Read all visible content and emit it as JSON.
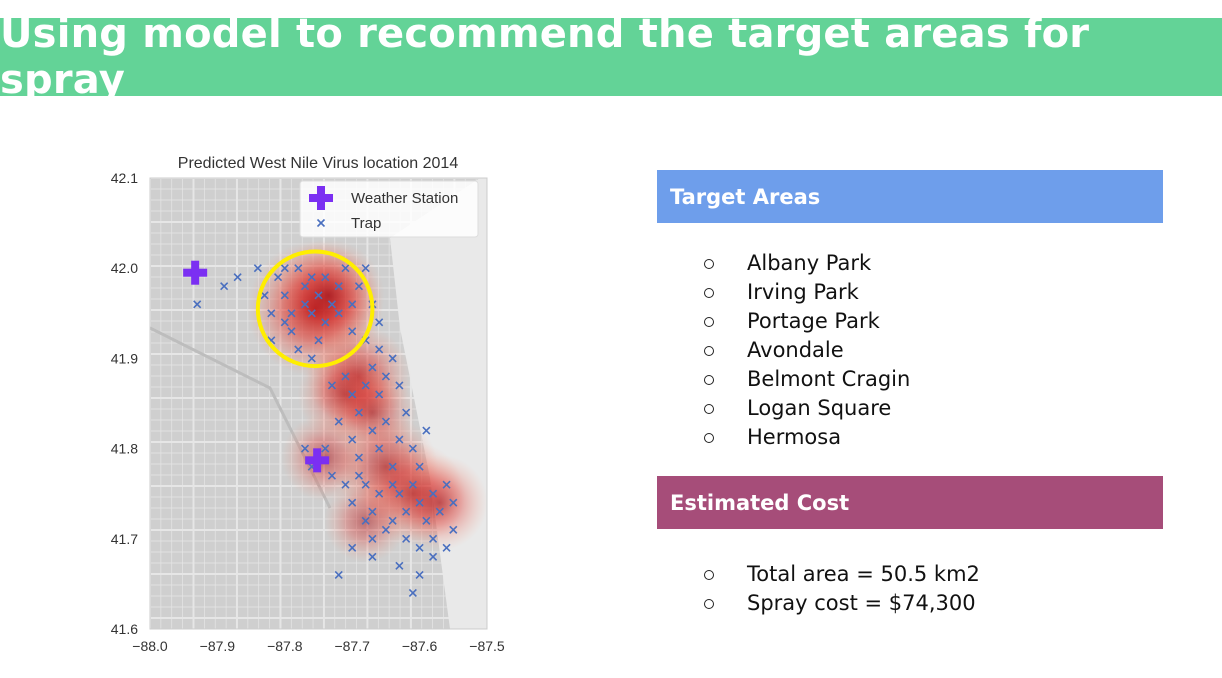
{
  "header": {
    "title": "Using model to recommend the target areas for spray"
  },
  "chart_data": {
    "type": "scatter",
    "title": "Predicted West Nile Virus location 2014",
    "xlabel": "",
    "ylabel": "",
    "xlim": [
      -88.0,
      -87.5
    ],
    "ylim": [
      41.6,
      42.1
    ],
    "xticks": [
      "−88.0",
      "−87.9",
      "−87.8",
      "−87.7",
      "−87.6",
      "−87.5"
    ],
    "yticks": [
      "41.6",
      "41.7",
      "41.8",
      "41.9",
      "42.0",
      "42.1"
    ],
    "legend": {
      "placement": "top-right",
      "entries": [
        "Weather Station",
        "Trap"
      ]
    },
    "background": "Chicago street map",
    "colors": {
      "weather_station": "#7b2ff2",
      "trap": "#4a6fbf",
      "heat": "#d7301f",
      "highlight_circle": "#ffee00"
    },
    "series": [
      {
        "name": "Weather Station",
        "marker": "plus",
        "points": [
          [
            -87.933,
            41.995
          ],
          [
            -87.752,
            41.787
          ]
        ]
      },
      {
        "name": "Trap",
        "marker": "x",
        "points": [
          [
            -87.93,
            41.96
          ],
          [
            -87.89,
            41.98
          ],
          [
            -87.87,
            41.99
          ],
          [
            -87.84,
            42.0
          ],
          [
            -87.83,
            41.97
          ],
          [
            -87.82,
            41.95
          ],
          [
            -87.81,
            41.99
          ],
          [
            -87.8,
            42.0
          ],
          [
            -87.8,
            41.97
          ],
          [
            -87.79,
            41.95
          ],
          [
            -87.79,
            41.93
          ],
          [
            -87.78,
            42.0
          ],
          [
            -87.77,
            41.98
          ],
          [
            -87.77,
            41.96
          ],
          [
            -87.76,
            41.99
          ],
          [
            -87.76,
            41.95
          ],
          [
            -87.75,
            41.92
          ],
          [
            -87.75,
            41.97
          ],
          [
            -87.74,
            41.99
          ],
          [
            -87.74,
            41.94
          ],
          [
            -87.73,
            41.96
          ],
          [
            -87.72,
            41.98
          ],
          [
            -87.72,
            41.95
          ],
          [
            -87.71,
            42.0
          ],
          [
            -87.7,
            41.96
          ],
          [
            -87.7,
            41.93
          ],
          [
            -87.69,
            41.98
          ],
          [
            -87.68,
            42.0
          ],
          [
            -87.68,
            41.92
          ],
          [
            -87.67,
            41.96
          ],
          [
            -87.66,
            41.94
          ],
          [
            -87.66,
            41.91
          ],
          [
            -87.82,
            41.92
          ],
          [
            -87.8,
            41.94
          ],
          [
            -87.78,
            41.91
          ],
          [
            -87.76,
            41.9
          ],
          [
            -87.73,
            41.87
          ],
          [
            -87.71,
            41.88
          ],
          [
            -87.7,
            41.86
          ],
          [
            -87.69,
            41.84
          ],
          [
            -87.68,
            41.87
          ],
          [
            -87.67,
            41.89
          ],
          [
            -87.66,
            41.86
          ],
          [
            -87.65,
            41.88
          ],
          [
            -87.64,
            41.9
          ],
          [
            -87.63,
            41.87
          ],
          [
            -87.72,
            41.83
          ],
          [
            -87.7,
            41.81
          ],
          [
            -87.69,
            41.79
          ],
          [
            -87.67,
            41.82
          ],
          [
            -87.66,
            41.8
          ],
          [
            -87.65,
            41.83
          ],
          [
            -87.64,
            41.78
          ],
          [
            -87.63,
            41.81
          ],
          [
            -87.62,
            41.84
          ],
          [
            -87.61,
            41.8
          ],
          [
            -87.6,
            41.78
          ],
          [
            -87.59,
            41.82
          ],
          [
            -87.77,
            41.8
          ],
          [
            -87.76,
            41.78
          ],
          [
            -87.74,
            41.8
          ],
          [
            -87.73,
            41.77
          ],
          [
            -87.71,
            41.76
          ],
          [
            -87.7,
            41.74
          ],
          [
            -87.68,
            41.76
          ],
          [
            -87.67,
            41.73
          ],
          [
            -87.66,
            41.75
          ],
          [
            -87.64,
            41.72
          ],
          [
            -87.63,
            41.75
          ],
          [
            -87.62,
            41.73
          ],
          [
            -87.61,
            41.76
          ],
          [
            -87.6,
            41.74
          ],
          [
            -87.59,
            41.72
          ],
          [
            -87.58,
            41.75
          ],
          [
            -87.57,
            41.73
          ],
          [
            -87.56,
            41.76
          ],
          [
            -87.55,
            41.74
          ],
          [
            -87.55,
            41.71
          ],
          [
            -87.56,
            41.69
          ],
          [
            -87.58,
            41.7
          ],
          [
            -87.6,
            41.69
          ],
          [
            -87.62,
            41.7
          ],
          [
            -87.65,
            41.71
          ],
          [
            -87.68,
            41.72
          ],
          [
            -87.7,
            41.69
          ],
          [
            -87.67,
            41.68
          ],
          [
            -87.63,
            41.67
          ],
          [
            -87.6,
            41.66
          ],
          [
            -87.58,
            41.68
          ],
          [
            -87.72,
            41.66
          ],
          [
            -87.61,
            41.64
          ],
          [
            -87.67,
            41.7
          ],
          [
            -87.69,
            41.77
          ],
          [
            -87.64,
            41.76
          ]
        ]
      }
    ],
    "heat_centers": [
      [
        -87.755,
        41.955,
        1.0
      ],
      [
        -87.735,
        41.97,
        0.7
      ],
      [
        -87.69,
        41.88,
        0.6
      ],
      [
        -87.71,
        41.86,
        0.5
      ],
      [
        -87.67,
        41.84,
        0.4
      ],
      [
        -87.65,
        41.78,
        0.6
      ],
      [
        -87.61,
        41.75,
        0.6
      ],
      [
        -87.57,
        41.74,
        0.5
      ],
      [
        -87.68,
        41.72,
        0.35
      ],
      [
        -87.74,
        41.79,
        0.4
      ]
    ],
    "highlight": {
      "center": [
        -87.755,
        41.955
      ],
      "radius_deg": 0.085
    }
  },
  "target_areas": {
    "title": "Target Areas",
    "color": "#6e9eeb",
    "items": [
      "Albany Park",
      "Irving Park",
      "Portage Park",
      "Avondale",
      "Belmont Cragin",
      "Logan Square",
      "Hermosa"
    ]
  },
  "estimated_cost": {
    "title": "Estimated Cost",
    "color": "#a64d79",
    "items": [
      "Total area = 50.5 km2",
      "Spray cost = $74,300"
    ]
  }
}
